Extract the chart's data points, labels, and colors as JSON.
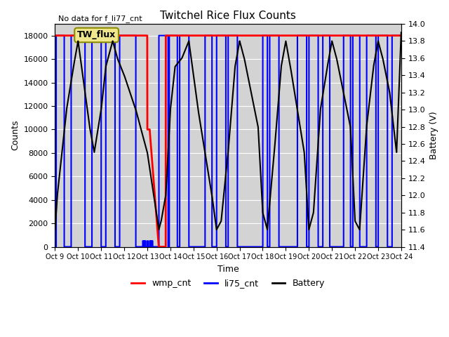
{
  "title": "Twitchel Rice Flux Counts",
  "subtitle": "No data for f_li77_cnt",
  "xlabel": "Time",
  "ylabel_left": "Counts",
  "ylabel_right": "Battery (V)",
  "xlim": [
    0,
    15
  ],
  "ylim_left": [
    0,
    19000
  ],
  "ylim_right": [
    11.4,
    14.0
  ],
  "yticks_left": [
    0,
    2000,
    4000,
    6000,
    8000,
    10000,
    12000,
    14000,
    16000,
    18000
  ],
  "yticks_right": [
    11.4,
    11.6,
    11.8,
    12.0,
    12.2,
    12.4,
    12.6,
    12.8,
    13.0,
    13.2,
    13.4,
    13.6,
    13.8,
    14.0
  ],
  "xtick_labels": [
    "Oct 9",
    "Oct 10",
    "Oct 11",
    "Oct 12",
    "Oct 13",
    "Oct 14",
    "Oct 15",
    "Oct 16",
    "Oct 17",
    "Oct 18",
    "Oct 19",
    "Oct 20",
    "Oct 21",
    "Oct 22",
    "Oct 23",
    "Oct 24"
  ],
  "legend_items": [
    "wmp_cnt",
    "li75_cnt",
    "Battery"
  ],
  "legend_colors": [
    "red",
    "blue",
    "black"
  ],
  "box_label": "TW_flux",
  "box_color": "#f0e68c",
  "box_edge_color": "#8B8B00",
  "background_color": "#d3d3d3",
  "wmp_color": "red",
  "li75_color": "blue",
  "battery_color": "black",
  "wmp_linewidth": 2,
  "li75_linewidth": 1.5,
  "battery_linewidth": 1.5,
  "grid_color": "white",
  "max_count": 18000
}
